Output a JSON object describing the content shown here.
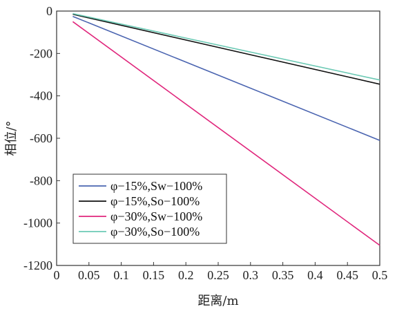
{
  "chart_data": {
    "type": "line",
    "xlabel": "距离/m",
    "ylabel": "相位/°",
    "xlim": [
      0,
      0.5
    ],
    "ylim": [
      -1200,
      0
    ],
    "xticks": [
      0,
      0.05,
      0.1,
      0.15,
      0.2,
      0.25,
      0.3,
      0.35,
      0.4,
      0.45,
      0.5
    ],
    "xtick_labels": [
      "0",
      "0.05",
      "0.1",
      "0.15",
      "0.2",
      "0.25",
      "0.3",
      "0.35",
      "0.4",
      "0.45",
      "0.5"
    ],
    "yticks": [
      0,
      -200,
      -400,
      -600,
      -800,
      -1000,
      -1200
    ],
    "ytick_labels": [
      "0",
      "-200",
      "-400",
      "-600",
      "-800",
      "-1000",
      "-1200"
    ],
    "grid": false,
    "legend_position": "bottom-left",
    "series": [
      {
        "name": "φ−15%,Sw−100%",
        "color": "#4a64b0",
        "x": [
          0.025,
          0.5
        ],
        "y": [
          -25,
          -610
        ]
      },
      {
        "name": "φ−15%,So−100%",
        "color": "#111111",
        "x": [
          0.025,
          0.5
        ],
        "y": [
          -15,
          -345
        ]
      },
      {
        "name": "φ−30%,Sw−100%",
        "color": "#e0267c",
        "x": [
          0.025,
          0.5
        ],
        "y": [
          -50,
          -1105
        ]
      },
      {
        "name": "φ−30%,So−100%",
        "color": "#6cc9b4",
        "x": [
          0.025,
          0.5
        ],
        "y": [
          -12,
          -325
        ]
      }
    ]
  }
}
